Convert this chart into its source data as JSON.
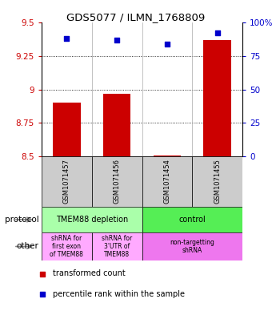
{
  "title": "GDS5077 / ILMN_1768809",
  "samples": [
    "GSM1071457",
    "GSM1071456",
    "GSM1071454",
    "GSM1071455"
  ],
  "transformed_counts": [
    8.9,
    8.97,
    8.505,
    9.37
  ],
  "percentile_ranks": [
    88,
    87,
    84,
    92
  ],
  "ylim_left": [
    8.5,
    9.5
  ],
  "ylim_right": [
    0,
    100
  ],
  "yticks_left": [
    8.5,
    8.75,
    9.0,
    9.25,
    9.5
  ],
  "ytick_labels_left": [
    "8.5",
    "8.75",
    "9",
    "9.25",
    "9.5"
  ],
  "yticks_right": [
    0,
    25,
    50,
    75,
    100
  ],
  "ytick_labels_right": [
    "0",
    "25",
    "50",
    "75",
    "100%"
  ],
  "bar_color": "#cc0000",
  "dot_color": "#0000cc",
  "protocol_groups": [
    {
      "label": "TMEM88 depletion",
      "color": "#aaffaa",
      "span": [
        0,
        2
      ]
    },
    {
      "label": "control",
      "color": "#55ee55",
      "span": [
        2,
        4
      ]
    }
  ],
  "other_groups": [
    {
      "label": "shRNA for\nfirst exon\nof TMEM88",
      "color": "#ffaaff",
      "span": [
        0,
        1
      ]
    },
    {
      "label": "shRNA for\n3'UTR of\nTMEM88",
      "color": "#ffaaff",
      "span": [
        1,
        2
      ]
    },
    {
      "label": "non-targetting\nshRNA",
      "color": "#ee77ee",
      "span": [
        2,
        4
      ]
    }
  ],
  "legend_bar_label": "transformed count",
  "legend_dot_label": "percentile rank within the sample",
  "bg_color": "#ffffff",
  "protocol_label": "protocol",
  "other_label": "other"
}
